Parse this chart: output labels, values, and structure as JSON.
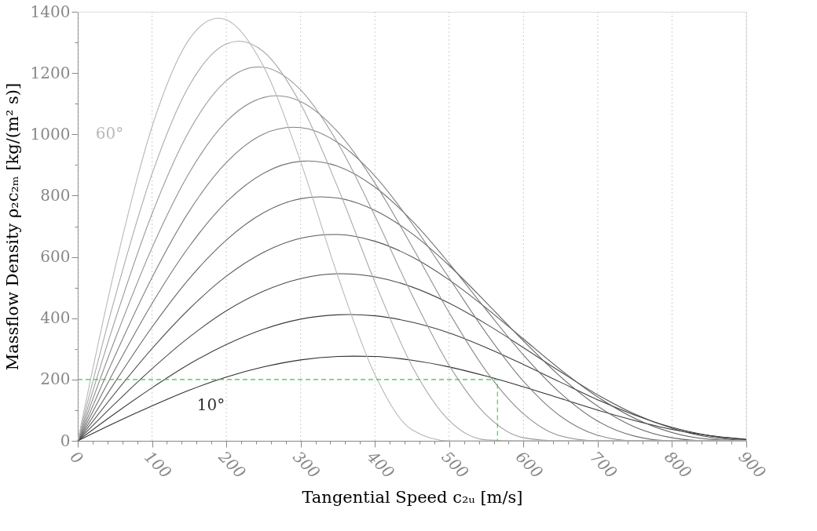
{
  "chart_data": {
    "type": "line",
    "xlabel": "Tangential Speed c₂ᵤ [m/s]",
    "ylabel": "Massflow Density ρ₂c₂ₘ [kg/(m² s)]",
    "xlim": [
      0,
      900
    ],
    "ylim": [
      0,
      1400
    ],
    "xticks": [
      0,
      {
        "value": 20,
        "label": null
      },
      {
        "value": 40,
        "label": null
      },
      {
        "value": 60,
        "label": null
      },
      {
        "value": 80,
        "label": null
      },
      100,
      {
        "value": 120,
        "label": null
      },
      {
        "value": 140,
        "label": null
      },
      {
        "value": 160,
        "label": null
      },
      {
        "value": 180,
        "label": null
      },
      200,
      {
        "value": 220,
        "label": null
      },
      {
        "value": 240,
        "label": null
      },
      {
        "value": 260,
        "label": null
      },
      {
        "value": 280,
        "label": null
      },
      300,
      {
        "value": 320,
        "label": null
      },
      {
        "value": 340,
        "label": null
      },
      {
        "value": 360,
        "label": null
      },
      {
        "value": 380,
        "label": null
      },
      400,
      {
        "value": 420,
        "label": null
      },
      {
        "value": 440,
        "label": null
      },
      {
        "value": 460,
        "label": null
      },
      {
        "value": 480,
        "label": null
      },
      500,
      {
        "value": 520,
        "label": null
      },
      {
        "value": 540,
        "label": null
      },
      {
        "value": 560,
        "label": null
      },
      {
        "value": 580,
        "label": null
      },
      600,
      {
        "value": 620,
        "label": null
      },
      {
        "value": 640,
        "label": null
      },
      {
        "value": 660,
        "label": null
      },
      {
        "value": 680,
        "label": null
      },
      700,
      {
        "value": 720,
        "label": null
      },
      {
        "value": 740,
        "label": null
      },
      {
        "value": 760,
        "label": null
      },
      {
        "value": 780,
        "label": null
      },
      800,
      {
        "value": 820,
        "label": null
      },
      {
        "value": 840,
        "label": null
      },
      {
        "value": 860,
        "label": null
      },
      {
        "value": 880,
        "label": null
      },
      900
    ],
    "yticks": [
      0,
      {
        "value": 100,
        "label": null
      },
      200,
      {
        "value": 300,
        "label": null
      },
      400,
      {
        "value": 500,
        "label": null
      },
      600,
      {
        "value": 700,
        "label": null
      },
      800,
      {
        "value": 900,
        "label": null
      },
      1000,
      {
        "value": 1100,
        "label": null
      },
      1200,
      {
        "value": 1300,
        "label": null
      },
      1400
    ],
    "grid": "x",
    "series": [
      {
        "name": "10°",
        "color": "#2e2e2e",
        "x": [
          0,
          50,
          100,
          150,
          200,
          250,
          300,
          350,
          372,
          400,
          450,
          500,
          550,
          600,
          650,
          700,
          750,
          800,
          850,
          900
        ],
        "values": [
          0,
          59,
          114,
          165,
          208,
          241,
          264,
          275,
          276,
          275,
          263,
          241,
          211,
          176,
          138,
          100,
          66,
          37,
          17,
          5
        ]
      },
      {
        "color": "#3c3c3c",
        "x": [
          0,
          50,
          100,
          150,
          200,
          250,
          300,
          350,
          365,
          400,
          450,
          500,
          550,
          600,
          650,
          700,
          750,
          800,
          850,
          900
        ],
        "values": [
          0,
          89,
          173,
          250,
          314,
          364,
          397,
          411,
          412,
          408,
          387,
          352,
          304,
          249,
          191,
          134,
          84,
          44,
          17,
          4
        ]
      },
      {
        "color": "#4a4a4a",
        "x": [
          0,
          50,
          100,
          150,
          200,
          250,
          300,
          350,
          355,
          400,
          450,
          500,
          550,
          600,
          650,
          700,
          750,
          800,
          850,
          900
        ],
        "values": [
          0,
          121,
          235,
          338,
          424,
          488,
          529,
          545,
          545,
          535,
          502,
          449,
          381,
          304,
          225,
          150,
          87,
          41,
          12,
          1
        ]
      },
      {
        "color": "#575757",
        "x": [
          0,
          50,
          100,
          150,
          200,
          250,
          300,
          343,
          350,
          400,
          450,
          500,
          550,
          600,
          650,
          700,
          750,
          800,
          850,
          900
        ],
        "values": [
          0,
          155,
          301,
          430,
          537,
          615,
          661,
          673,
          673,
          651,
          600,
          525,
          433,
          332,
          232,
          143,
          73,
          27,
          5,
          0
        ]
      },
      {
        "color": "#656565",
        "x": [
          0,
          50,
          100,
          150,
          200,
          250,
          300,
          327,
          350,
          400,
          450,
          500,
          550,
          600,
          650,
          700,
          750,
          800,
          850,
          900
        ],
        "values": [
          0,
          191,
          371,
          529,
          655,
          744,
          790,
          796,
          792,
          752,
          676,
          572,
          451,
          326,
          209,
          113,
          45,
          10,
          0,
          0
        ]
      },
      {
        "color": "#737373",
        "x": [
          0,
          50,
          100,
          150,
          200,
          250,
          300,
          310,
          350,
          400,
          450,
          500,
          550,
          600,
          650,
          700,
          750,
          800,
          850,
          900
        ],
        "values": [
          0,
          232,
          448,
          634,
          779,
          873,
          912,
          913,
          896,
          828,
          718,
          579,
          427,
          280,
          155,
          64,
          15,
          0,
          0,
          0
        ]
      },
      {
        "color": "#818181",
        "x": [
          0,
          50,
          100,
          150,
          200,
          250,
          290,
          300,
          350,
          400,
          450,
          500,
          550,
          600,
          650,
          700,
          750,
          800,
          850,
          900
        ],
        "values": [
          0,
          277,
          533,
          749,
          908,
          1001,
          1023,
          1022,
          973,
          864,
          709,
          531,
          351,
          194,
          80,
          18,
          0,
          0,
          0,
          0
        ]
      },
      {
        "color": "#8e8e8e",
        "x": [
          0,
          50,
          100,
          150,
          200,
          250,
          267,
          300,
          350,
          400,
          450,
          500,
          550,
          600,
          650,
          700,
          750,
          800,
          850,
          900
        ],
        "values": [
          0,
          330,
          630,
          874,
          1042,
          1120,
          1126,
          1107,
          1008,
          841,
          634,
          418,
          227,
          88,
          16,
          0,
          0,
          0,
          0,
          0
        ]
      },
      {
        "color": "#9c9c9c",
        "x": [
          0,
          50,
          100,
          150,
          200,
          243,
          250,
          300,
          350,
          400,
          450,
          500,
          550,
          600,
          650,
          700,
          750,
          800,
          850,
          900
        ],
        "values": [
          0,
          392,
          741,
          1011,
          1175,
          1220,
          1219,
          1145,
          972,
          734,
          476,
          246,
          84,
          10,
          0,
          0,
          0,
          0,
          0,
          0
        ]
      },
      {
        "color": "#aaaaaa",
        "x": [
          0,
          50,
          100,
          150,
          200,
          217,
          250,
          300,
          350,
          400,
          450,
          500,
          550,
          600,
          650,
          700,
          750,
          800,
          850,
          900
        ],
        "values": [
          0,
          467,
          871,
          1159,
          1295,
          1304,
          1270,
          1099,
          827,
          518,
          244,
          66,
          3,
          0,
          0,
          0,
          0,
          0,
          0,
          0
        ]
      },
      {
        "name": "60°",
        "color": "#b8b8b8",
        "x": [
          0,
          50,
          100,
          150,
          189,
          200,
          250,
          300,
          350,
          400,
          450,
          500,
          550,
          600,
          650,
          700,
          750,
          800,
          850,
          900
        ],
        "values": [
          0,
          562,
          1025,
          1310,
          1379,
          1374,
          1222,
          911,
          538,
          216,
          36,
          0,
          0,
          0,
          0,
          0,
          0,
          0,
          0,
          0
        ]
      },
      {
        "type": "line",
        "color": "#33cc33",
        "line_style": "dashed",
        "x": [
          0,
          565,
          565
        ],
        "values": [
          200,
          200,
          0
        ]
      }
    ]
  }
}
